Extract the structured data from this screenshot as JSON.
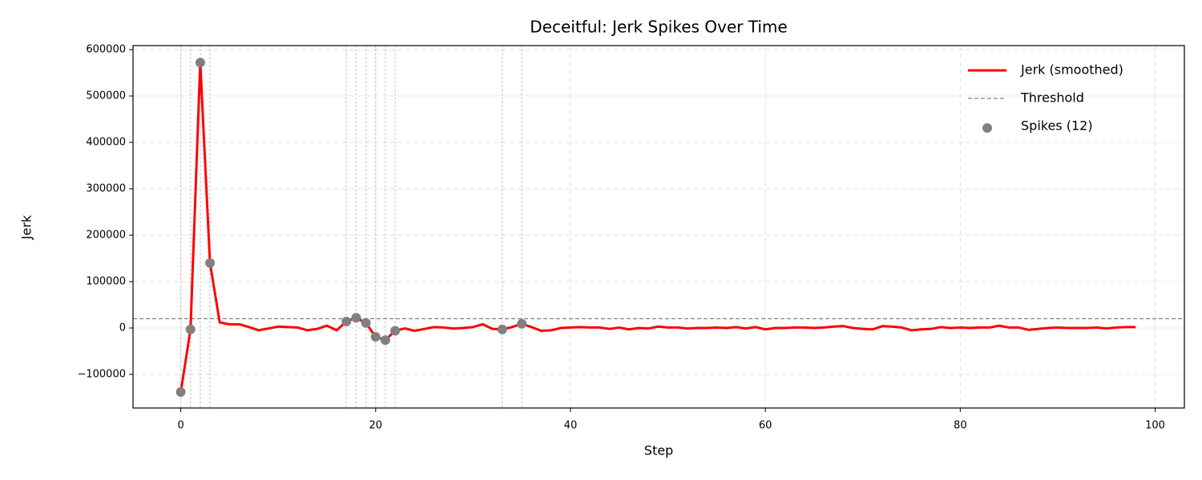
{
  "chart_data": {
    "type": "line",
    "title": "Deceitful: Jerk Spikes Over Time",
    "x_label": "Step",
    "y_label": "Jerk",
    "x": [
      0,
      1,
      2,
      3,
      4,
      5,
      6,
      7,
      8,
      9,
      10,
      11,
      12,
      13,
      14,
      15,
      16,
      17,
      18,
      19,
      20,
      21,
      22,
      23,
      24,
      25,
      26,
      27,
      28,
      29,
      30,
      31,
      32,
      33,
      34,
      35,
      36,
      37,
      38,
      39,
      40,
      41,
      42,
      43,
      44,
      45,
      46,
      47,
      48,
      49,
      50,
      51,
      52,
      53,
      54,
      55,
      56,
      57,
      58,
      59,
      60,
      61,
      62,
      63,
      64,
      65,
      66,
      67,
      68,
      69,
      70,
      71,
      72,
      73,
      74,
      75,
      76,
      77,
      78,
      79,
      80,
      81,
      82,
      83,
      84,
      85,
      86,
      87,
      88,
      89,
      90,
      91,
      92,
      93,
      94,
      95,
      96,
      97,
      98
    ],
    "series": [
      {
        "name": "Jerk (smoothed)",
        "color": "#ff0000",
        "values": [
          -138000,
          -3000,
          572000,
          140000,
          12000,
          8000,
          8000,
          2000,
          -5000,
          -1000,
          3000,
          2000,
          1000,
          -5000,
          -2000,
          5000,
          -5000,
          14000,
          22000,
          11000,
          -19000,
          -26000,
          -6000,
          -1000,
          -6000,
          -2000,
          2000,
          1000,
          -1000,
          0,
          2000,
          8000,
          -2000,
          -3000,
          2000,
          9000,
          2000,
          -6000,
          -5000,
          0,
          1000,
          2000,
          1000,
          1000,
          -2000,
          1000,
          -3000,
          0,
          -1000,
          3000,
          1000,
          1000,
          -1000,
          0,
          0,
          1000,
          0,
          2000,
          -1000,
          2000,
          -3000,
          0,
          0,
          1000,
          1000,
          0,
          1000,
          3000,
          4000,
          0,
          -2000,
          -3000,
          4000,
          3000,
          1000,
          -5000,
          -3000,
          -2000,
          2000,
          0,
          1000,
          0,
          1000,
          1000,
          5000,
          1000,
          1000,
          -4000,
          -2000,
          0,
          1000,
          0,
          0,
          0,
          1000,
          -1000,
          1000,
          2000,
          2000
        ]
      }
    ],
    "threshold": {
      "name": "Threshold",
      "value": 20000,
      "color": "#808080"
    },
    "spikes": {
      "name": "Spikes (12)",
      "color": "#808080",
      "x": [
        0,
        1,
        2,
        3,
        17,
        18,
        19,
        20,
        21,
        22,
        33,
        35
      ],
      "values": [
        -138000,
        -3000,
        572000,
        140000,
        14000,
        22000,
        11000,
        -19000,
        -26000,
        -6000,
        -3000,
        9000
      ]
    },
    "xlim": [
      -4.9,
      103.0
    ],
    "xticks": [
      0,
      20,
      40,
      60,
      80,
      100
    ],
    "ylim": [
      -172400,
      608600
    ],
    "yticks": [
      {
        "value": -100000,
        "label": "−100000"
      },
      0,
      100000,
      200000,
      300000,
      400000,
      500000,
      600000
    ],
    "grid": true,
    "legend": "upper right"
  }
}
